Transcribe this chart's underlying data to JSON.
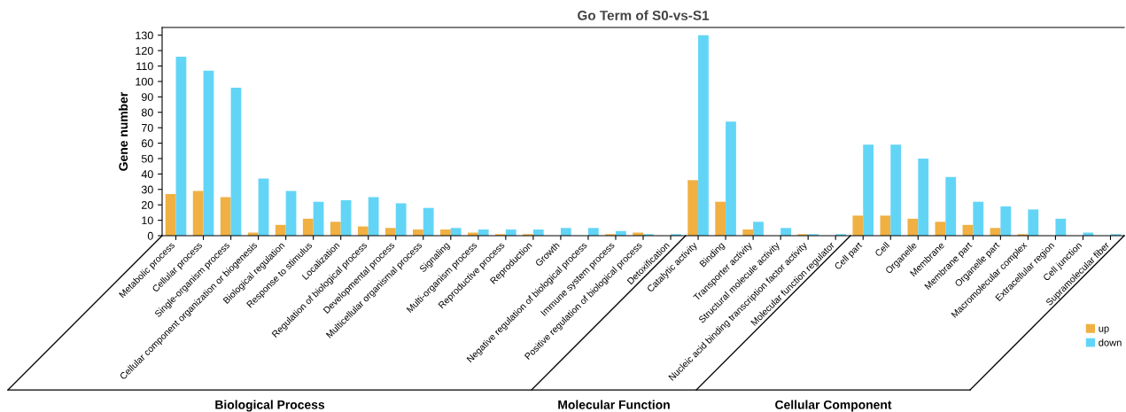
{
  "chart_data": {
    "type": "bar",
    "title": "Go Term of S0-vs-S1",
    "ylabel": "Gene number",
    "categories": [
      "Metabolic process",
      "Cellular process",
      "Single-organism process",
      "Cellular component organization or biogenesis",
      "Biological regulation",
      "Response to stimulus",
      "Localization",
      "Regulation of biological process",
      "Developmental process",
      "Multicellular organismal process",
      "Signaling",
      "Multi-organism process",
      "Reproductive process",
      "Reproduction",
      "Growth",
      "Negative regulation of biological process",
      "Immune system process",
      "Positive regulation of biological process",
      "Detoxification",
      "Catalytic activity",
      "Binding",
      "Transporter activity",
      "Structural molecule activity",
      "Nucleic acid binding transcription factor activity",
      "Molecular function regulator",
      "Cell part",
      "Cell",
      "Organelle",
      "Membrane",
      "Membrane part",
      "Organelle part",
      "Macromolecular complex",
      "Extracellular region",
      "Cell junction",
      "Supramolecular fiber"
    ],
    "series": [
      {
        "name": "up",
        "color": "#f0b042",
        "values": [
          27,
          29,
          25,
          2,
          7,
          11,
          9,
          6,
          5,
          4,
          4,
          2,
          1,
          1,
          0,
          0,
          1,
          2,
          0,
          36,
          22,
          4,
          0,
          1,
          0,
          13,
          13,
          11,
          9,
          7,
          5,
          1,
          0,
          0,
          0
        ]
      },
      {
        "name": "down",
        "color": "#62d5f7",
        "values": [
          116,
          107,
          96,
          37,
          29,
          22,
          23,
          25,
          21,
          18,
          5,
          4,
          4,
          4,
          5,
          5,
          3,
          1,
          1,
          130,
          74,
          9,
          5,
          1,
          1,
          59,
          59,
          50,
          38,
          22,
          19,
          17,
          11,
          2,
          1
        ]
      }
    ],
    "ylim": [
      0,
      135
    ],
    "yticks": [
      0,
      10,
      20,
      30,
      40,
      50,
      60,
      70,
      80,
      90,
      100,
      110,
      120,
      130
    ],
    "grid": false,
    "legend": "bottom right",
    "annotations": [
      "Biological Process",
      "Molecular Function",
      "Cellular Component"
    ]
  }
}
